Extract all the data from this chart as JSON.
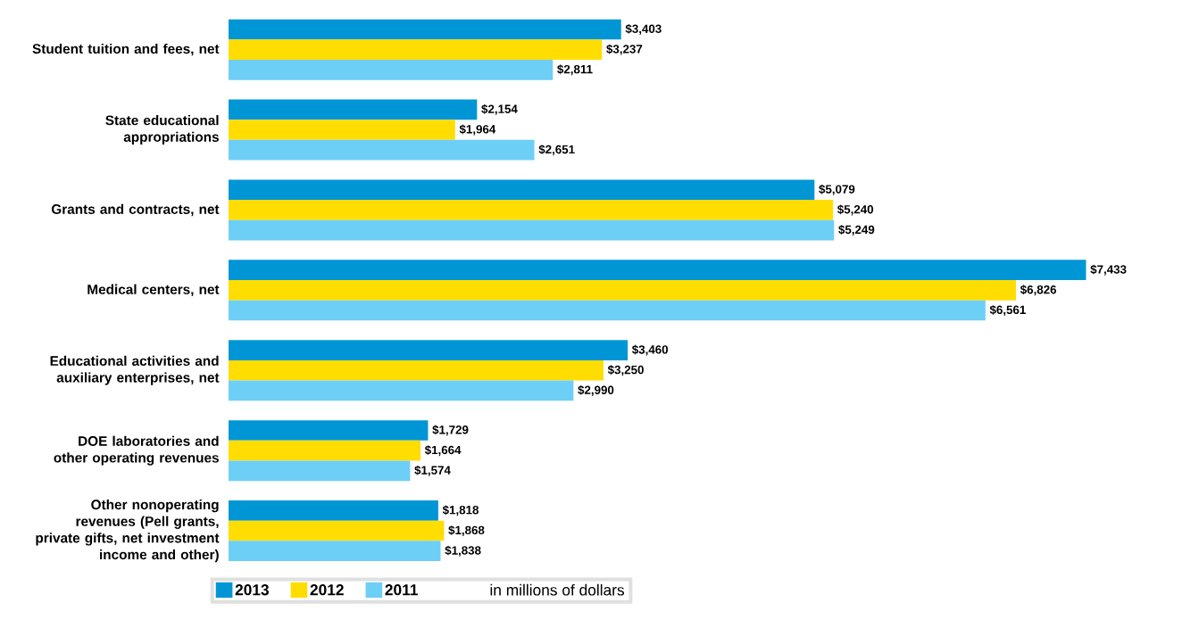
{
  "chart_data": {
    "type": "bar",
    "orientation": "horizontal",
    "categories": [
      "Student tuition and fees, net",
      "State educational appropriations",
      "Grants and contracts, net",
      "Medical centers, net",
      "Educational activities and auxiliary enterprises, net",
      "DOE laboratories and other operating revenues",
      "Other nonoperating revenues (Pell grants, private gifts, net investment income and other)"
    ],
    "series": [
      {
        "name": "2013",
        "color": "#0096d6",
        "values": [
          3403,
          2154,
          5079,
          7433,
          3460,
          1729,
          1818
        ],
        "value_labels": [
          "$3,403",
          "$2,154",
          "$5,079",
          "$7,433",
          "$3,460",
          "$1,729",
          "$1,818"
        ]
      },
      {
        "name": "2012",
        "color": "#ffdd00",
        "values": [
          3237,
          1964,
          5240,
          6826,
          3250,
          1664,
          1868
        ],
        "value_labels": [
          "$3,237",
          "$1,964",
          "$5,240",
          "$6,826",
          "$3,250",
          "$1,664",
          "$1,868"
        ]
      },
      {
        "name": "2011",
        "color": "#6dcff6",
        "values": [
          2811,
          2651,
          5249,
          6561,
          2990,
          1574,
          1838
        ],
        "value_labels": [
          "$2,811",
          "$2,651",
          "$5,249",
          "$6,561",
          "$2,990",
          "$1,574",
          "$1,838"
        ]
      }
    ],
    "annotations": [
      "in millions of dollars"
    ],
    "legend": "bottom"
  }
}
